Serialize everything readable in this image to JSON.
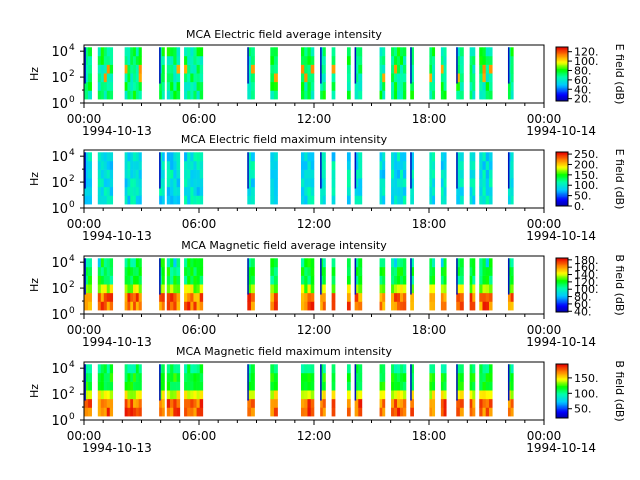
{
  "figure": {
    "xtick_labels": [
      "00:00",
      "06:00",
      "12:00",
      "18:00",
      "00:00"
    ],
    "date_start": "1994-10-13",
    "date_end": "1994-10-14"
  },
  "chart_data": [
    {
      "type": "heatmap",
      "title": "MCA  Electric field average intensity",
      "ylabel": "Hz",
      "yscale": "log",
      "ylim": [
        1,
        30000
      ],
      "ytick_labels": [
        "10",
        "10",
        "10"
      ],
      "ytick_exponents": [
        "0",
        "2",
        "4"
      ],
      "xlim_hours": [
        0,
        24
      ],
      "colorbar": {
        "label": "E field (dB)",
        "range": [
          15,
          130
        ],
        "tick_labels": [
          "20.",
          "40.",
          "60.",
          "80.",
          "100.",
          "120."
        ],
        "ticks": [
          20,
          40,
          60,
          80,
          100,
          120
        ]
      },
      "pattern": "efield_avg",
      "freq_bands": 6,
      "data_intervals_hours": [
        [
          0.0,
          0.4
        ],
        [
          0.7,
          1.5
        ],
        [
          2.1,
          3.0
        ],
        [
          3.9,
          4.2
        ],
        [
          4.3,
          5.0
        ],
        [
          5.2,
          6.2
        ],
        [
          8.5,
          8.9
        ],
        [
          9.7,
          10.1
        ],
        [
          11.3,
          12.0
        ],
        [
          12.3,
          12.6
        ],
        [
          12.9,
          13.1
        ],
        [
          13.7,
          13.9
        ],
        [
          14.1,
          14.5
        ],
        [
          15.4,
          15.7
        ],
        [
          16.0,
          16.8
        ],
        [
          17.0,
          17.2
        ],
        [
          18.0,
          18.3
        ],
        [
          18.6,
          18.9
        ],
        [
          19.4,
          19.8
        ],
        [
          20.1,
          20.4
        ],
        [
          20.6,
          21.3
        ],
        [
          22.1,
          22.4
        ]
      ]
    },
    {
      "type": "heatmap",
      "title": "MCA  Electric field maximum intensity",
      "ylabel": "Hz",
      "yscale": "log",
      "ylim": [
        1,
        30000
      ],
      "ytick_labels": [
        "10",
        "10",
        "10"
      ],
      "ytick_exponents": [
        "0",
        "2",
        "4"
      ],
      "xlim_hours": [
        0,
        24
      ],
      "colorbar": {
        "label": "E field (dB)",
        "range": [
          0,
          260
        ],
        "tick_labels": [
          "0.",
          "50.",
          "100.",
          "150.",
          "200.",
          "250."
        ],
        "ticks": [
          0,
          50,
          100,
          150,
          200,
          250
        ]
      },
      "pattern": "efield_max",
      "freq_bands": 6,
      "data_intervals_hours": [
        [
          0.0,
          0.4
        ],
        [
          0.7,
          1.5
        ],
        [
          2.1,
          3.0
        ],
        [
          3.9,
          4.2
        ],
        [
          4.3,
          5.0
        ],
        [
          5.2,
          6.2
        ],
        [
          8.5,
          8.9
        ],
        [
          9.7,
          10.1
        ],
        [
          11.3,
          12.0
        ],
        [
          12.3,
          12.6
        ],
        [
          12.9,
          13.1
        ],
        [
          13.7,
          13.9
        ],
        [
          14.1,
          14.5
        ],
        [
          15.4,
          15.7
        ],
        [
          16.0,
          16.8
        ],
        [
          17.0,
          17.2
        ],
        [
          18.0,
          18.3
        ],
        [
          18.6,
          18.9
        ],
        [
          19.4,
          19.8
        ],
        [
          20.1,
          20.4
        ],
        [
          20.6,
          21.3
        ],
        [
          22.1,
          22.4
        ]
      ]
    },
    {
      "type": "heatmap",
      "title": "MCA  Magnetic field average intensity",
      "ylabel": "Hz",
      "yscale": "log",
      "ylim": [
        1,
        30000
      ],
      "ytick_labels": [
        "10",
        "10",
        "10"
      ],
      "ytick_exponents": [
        "0",
        "2",
        "4"
      ],
      "xlim_hours": [
        0,
        24
      ],
      "colorbar": {
        "label": "B field (dB)",
        "range": [
          38,
          185
        ],
        "tick_labels": [
          "40.",
          "60.",
          "80.",
          "100.",
          "120.",
          "140.",
          "160.",
          "180."
        ],
        "ticks": [
          40,
          60,
          80,
          100,
          120,
          140,
          160,
          180
        ]
      },
      "pattern": "bfield",
      "freq_bands": 6,
      "data_intervals_hours": [
        [
          0.0,
          0.4
        ],
        [
          0.7,
          1.5
        ],
        [
          2.1,
          3.0
        ],
        [
          3.9,
          4.2
        ],
        [
          4.3,
          5.0
        ],
        [
          5.2,
          6.2
        ],
        [
          8.5,
          8.9
        ],
        [
          9.7,
          10.1
        ],
        [
          11.3,
          12.0
        ],
        [
          12.3,
          12.6
        ],
        [
          12.9,
          13.1
        ],
        [
          13.7,
          13.9
        ],
        [
          14.1,
          14.5
        ],
        [
          15.4,
          15.7
        ],
        [
          16.0,
          16.8
        ],
        [
          17.0,
          17.2
        ],
        [
          18.0,
          18.3
        ],
        [
          18.6,
          18.9
        ],
        [
          19.4,
          19.8
        ],
        [
          20.1,
          20.4
        ],
        [
          20.6,
          21.3
        ],
        [
          22.1,
          22.4
        ]
      ]
    },
    {
      "type": "heatmap",
      "title": "MCA  Magnetic field maximum intensity",
      "ylabel": "Hz",
      "yscale": "log",
      "ylim": [
        1,
        30000
      ],
      "ytick_labels": [
        "10",
        "10",
        "10"
      ],
      "ytick_exponents": [
        "0",
        "2",
        "4"
      ],
      "xlim_hours": [
        0,
        24
      ],
      "colorbar": {
        "label": "B field (dB)",
        "range": [
          20,
          195
        ],
        "tick_labels": [
          "50.",
          "100.",
          "150."
        ],
        "ticks": [
          50,
          100,
          150
        ]
      },
      "pattern": "bfield_max",
      "freq_bands": 6,
      "data_intervals_hours": [
        [
          0.0,
          0.4
        ],
        [
          0.7,
          1.5
        ],
        [
          2.1,
          3.0
        ],
        [
          3.9,
          4.2
        ],
        [
          4.3,
          5.0
        ],
        [
          5.2,
          6.2
        ],
        [
          8.5,
          8.9
        ],
        [
          9.7,
          10.1
        ],
        [
          11.3,
          12.0
        ],
        [
          12.3,
          12.6
        ],
        [
          12.9,
          13.1
        ],
        [
          13.7,
          13.9
        ],
        [
          14.1,
          14.5
        ],
        [
          15.4,
          15.7
        ],
        [
          16.0,
          16.8
        ],
        [
          17.0,
          17.2
        ],
        [
          18.0,
          18.3
        ],
        [
          18.6,
          18.9
        ],
        [
          19.4,
          19.8
        ],
        [
          20.1,
          20.4
        ],
        [
          20.6,
          21.3
        ],
        [
          22.1,
          22.4
        ]
      ]
    }
  ]
}
